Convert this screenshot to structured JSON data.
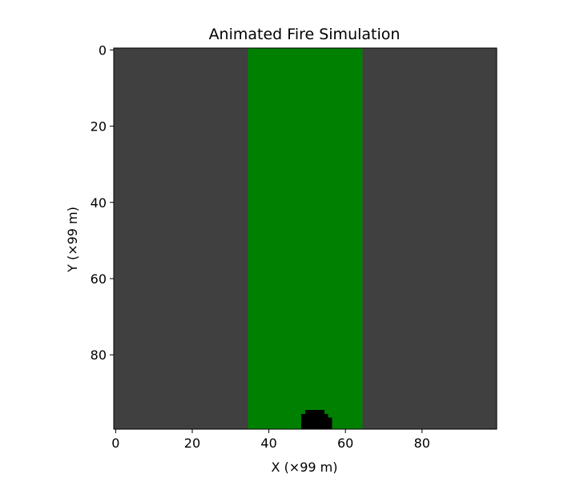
{
  "chart_data": {
    "type": "heatmap",
    "title": "Animated Fire Simulation",
    "xlabel": "X (×99 m)",
    "ylabel": "Y (×99 m)",
    "grid": false,
    "legend": "none",
    "xlim": [
      0,
      100
    ],
    "ylim": [
      100,
      0
    ],
    "xticks": [
      0,
      20,
      40,
      60,
      80
    ],
    "yticks": [
      0,
      20,
      40,
      60,
      80
    ],
    "grid_size": [
      100,
      100
    ],
    "cell_states": {
      "empty": "#404040",
      "vegetation": "#008000",
      "burnt": "#000000"
    },
    "regions": [
      {
        "state": "empty",
        "x": [
          0,
          35
        ],
        "y": [
          0,
          100
        ]
      },
      {
        "state": "vegetation",
        "x": [
          35,
          65
        ],
        "y": [
          0,
          100
        ]
      },
      {
        "state": "empty",
        "x": [
          65,
          100
        ],
        "y": [
          0,
          100
        ]
      }
    ],
    "burnt_rows": [
      {
        "y": 95,
        "x": [
          50,
          55
        ]
      },
      {
        "y": 96,
        "x": [
          49,
          56
        ]
      },
      {
        "y": 97,
        "x": [
          49,
          57
        ]
      },
      {
        "y": 98,
        "x": [
          49,
          57
        ]
      },
      {
        "y": 99,
        "x": [
          49,
          57
        ]
      }
    ]
  }
}
